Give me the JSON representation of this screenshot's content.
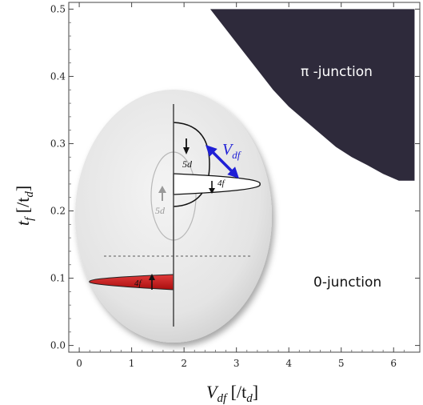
{
  "chart_data": {
    "type": "heatmap",
    "xlim": [
      -0.2,
      6.5
    ],
    "ylim": [
      -0.01,
      0.51
    ],
    "x_ticks": [
      "0",
      "1",
      "2",
      "3",
      "4",
      "5",
      "6"
    ],
    "y_ticks": [
      "0.0",
      "0.1",
      "0.2",
      "0.3",
      "0.4",
      "0.5"
    ],
    "xlabel": "V_df [/t_d]",
    "ylabel": "t_f [/t_d]",
    "regions": [
      {
        "name": "π -junction",
        "color": "#2e2a3b"
      },
      {
        "name": "0-junction",
        "color": "#ffffff"
      }
    ],
    "pi_boundary": [
      [
        2.5,
        0.5
      ],
      [
        2.8,
        0.47
      ],
      [
        3.1,
        0.44
      ],
      [
        3.4,
        0.41
      ],
      [
        3.7,
        0.38
      ],
      [
        4.0,
        0.355
      ],
      [
        4.3,
        0.335
      ],
      [
        4.6,
        0.315
      ],
      [
        4.9,
        0.295
      ],
      [
        5.2,
        0.28
      ],
      [
        5.5,
        0.268
      ],
      [
        5.8,
        0.255
      ],
      [
        6.1,
        0.245
      ],
      [
        6.4,
        0.245
      ]
    ],
    "inset": {
      "labels": {
        "top_right": "5d",
        "gray": "5d",
        "middle": "4f",
        "bottom": "4f",
        "arrow": "V"
      }
    },
    "colors": {
      "pi_region": "#2e2a3b",
      "arrow": "#1f1fd6",
      "red_orbital": "#cc1111"
    }
  }
}
